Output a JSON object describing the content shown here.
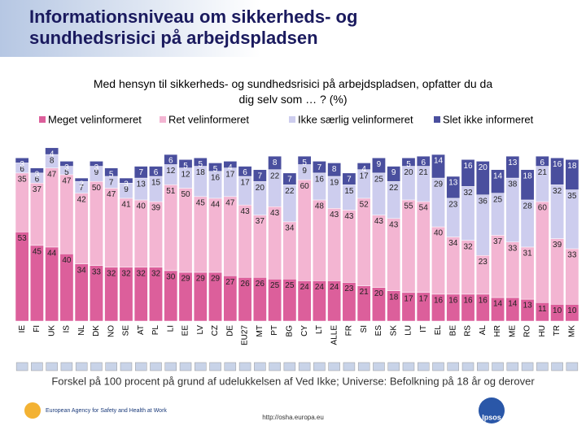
{
  "title": "Informationsniveau om sikkerheds- og sundhedsrisici på arbejdspladsen",
  "footnote": "Forskel på 100 procent på grund af udelukkelsen af Ved Ikke; Universe: Befolkning på 18 år og derover",
  "url": "http://osha.europa.eu",
  "logo_left": "European Agency for Safety and Health at Work",
  "logo_right": "Ipsos",
  "chart_data": {
    "type": "stacked_bar",
    "title": "Med hensyn til sikkerheds- og sundhedsrisici på arbejdspladsen, opfatter du da dig selv som … ? (%)",
    "categories": [
      "IE",
      "FI",
      "UK",
      "IS",
      "NL",
      "DK",
      "NO",
      "SE",
      "AT",
      "PL",
      "LI",
      "EE",
      "LV",
      "CZ",
      "DE",
      "EU27",
      "MT",
      "PT",
      "BG",
      "CY",
      "LT",
      "ALLE",
      "FR",
      "SI",
      "ES",
      "SK",
      "LU",
      "IT",
      "EL",
      "BE",
      "RS",
      "AL",
      "HR",
      "ME",
      "RO",
      "HU",
      "TR",
      "MK"
    ],
    "ylim": [
      0,
      100
    ],
    "series": [
      {
        "name": "Meget velinformeret",
        "color": "#dc5f9b",
        "values": [
          53,
          45,
          44,
          40,
          34,
          33,
          32,
          32,
          32,
          32,
          30,
          29,
          29,
          29,
          27,
          26,
          26,
          25,
          25,
          24,
          24,
          24,
          23,
          21,
          20,
          18,
          17,
          17,
          16,
          16,
          16,
          16,
          14,
          14,
          13,
          11,
          10,
          10
        ]
      },
      {
        "name": "Ret velinformeret",
        "color": "#f3b5d2",
        "values": [
          35,
          37,
          47,
          47,
          42,
          50,
          47,
          41,
          40,
          39,
          51,
          50,
          45,
          44,
          47,
          43,
          37,
          43,
          34,
          60,
          48,
          43,
          43,
          52,
          43,
          43,
          55,
          54,
          40,
          34,
          32,
          23,
          37,
          33,
          31,
          60,
          39,
          33
        ]
      },
      {
        "name": "Ikke særlig velinformeret",
        "color": "#cdcdee",
        "values": [
          6,
          6,
          8,
          5,
          7,
          9,
          7,
          9,
          13,
          15,
          12,
          12,
          18,
          16,
          17,
          17,
          20,
          22,
          22,
          9,
          16,
          19,
          15,
          17,
          25,
          22,
          20,
          21,
          29,
          23,
          32,
          36,
          25,
          38,
          28,
          21,
          32,
          35
        ]
      },
      {
        "name": "Slet ikke informeret",
        "color": "#4a4f9e",
        "values": [
          3,
          3,
          4,
          3,
          2,
          3,
          5,
          3,
          7,
          6,
          6,
          5,
          5,
          5,
          4,
          6,
          7,
          8,
          7,
          5,
          7,
          8,
          7,
          4,
          9,
          9,
          5,
          6,
          14,
          13,
          16,
          20,
          14,
          13,
          18,
          6,
          16,
          18
        ]
      }
    ]
  }
}
